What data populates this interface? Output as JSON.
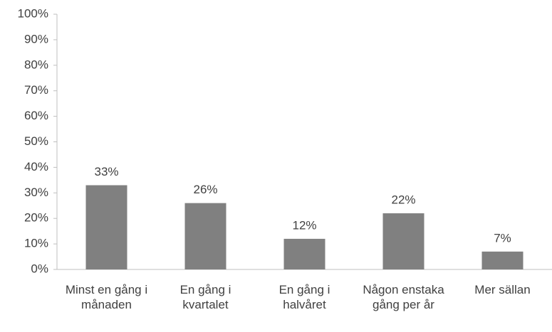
{
  "chart_data": {
    "type": "bar",
    "categories": [
      "Minst en gång i månaden",
      "En gång i kvartalet",
      "En gång i halvåret",
      "Någon enstaka gång per år",
      "Mer sällan"
    ],
    "values": [
      33,
      26,
      12,
      22,
      7
    ],
    "value_labels": [
      "33%",
      "26%",
      "12%",
      "22%",
      "7%"
    ],
    "color": "#808080",
    "ylim": [
      0,
      100
    ],
    "yticks": [
      {
        "value": 0,
        "label": "0%"
      },
      {
        "value": 10,
        "label": "10%"
      },
      {
        "value": 20,
        "label": "20%"
      },
      {
        "value": 30,
        "label": "30%"
      },
      {
        "value": 40,
        "label": "40%"
      },
      {
        "value": 50,
        "label": "50%"
      },
      {
        "value": 60,
        "label": "60%"
      },
      {
        "value": 70,
        "label": "70%"
      },
      {
        "value": 80,
        "label": "80%"
      },
      {
        "value": 90,
        "label": "90%"
      },
      {
        "value": 100,
        "label": "100%"
      }
    ],
    "grid": false
  }
}
